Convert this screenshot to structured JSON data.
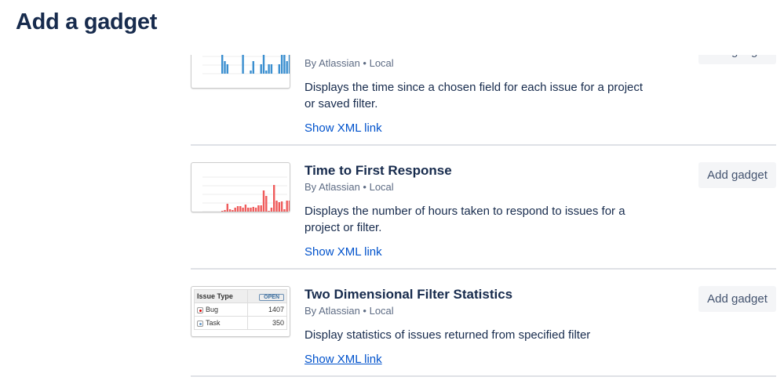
{
  "page_title": "Add a gadget",
  "colors": {
    "link": "#0052cc",
    "title": "#172b4d",
    "bar_blue": "#3b8fd0",
    "bar_red": "#ef5b5b"
  },
  "gadgets": [
    {
      "title": "",
      "byline": "By Atlassian • Local",
      "description": "Displays the time since a chosen field for each issue for a project or saved filter.",
      "link": "Show XML link",
      "button": "Add gadget"
    },
    {
      "title": "Time to First Response",
      "byline": "By Atlassian • Local",
      "description": "Displays the number of hours taken to respond to issues for a project or filter.",
      "link": "Show XML link",
      "button": "Add gadget"
    },
    {
      "title": "Two Dimensional Filter Statistics",
      "byline": "By Atlassian • Local",
      "description": "Display statistics of issues returned from specified filter",
      "link": "Show XML link",
      "button": "Add gadget",
      "thumbnail": {
        "header": "Issue Type",
        "badge": "OPEN",
        "rows": [
          {
            "label": "Bug",
            "icon": "bug-icon",
            "value": "1407"
          },
          {
            "label": "Task",
            "icon": "task-icon",
            "value": "350"
          }
        ]
      }
    }
  ]
}
